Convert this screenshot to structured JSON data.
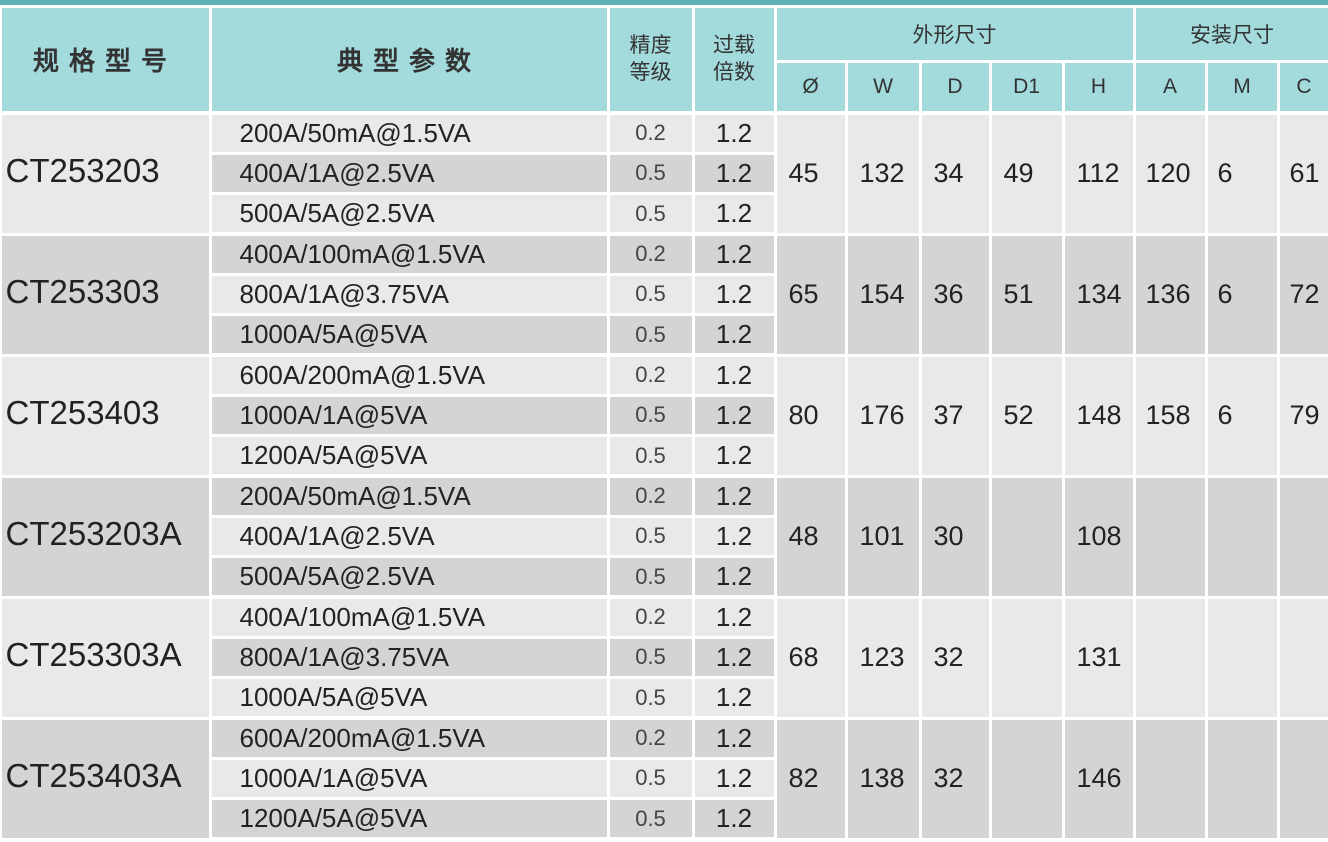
{
  "header": {
    "model": "规格型号",
    "params": "典型参数",
    "accuracy": "精度等级",
    "overload": "过载倍数",
    "outline": "外形尺寸",
    "mounting": "安装尺寸",
    "outline_cols": [
      "Ø",
      "W",
      "D",
      "D1",
      "H"
    ],
    "mounting_cols": [
      "A",
      "M",
      "C"
    ]
  },
  "rows": [
    {
      "model": "CT253203",
      "specs": [
        {
          "spec": "200A/50mA@1.5VA",
          "accuracy": 0.2,
          "overload": 1.2
        },
        {
          "spec": "400A/1A@2.5VA",
          "accuracy": 0.5,
          "overload": 1.2
        },
        {
          "spec": "500A/5A@2.5VA",
          "accuracy": 0.5,
          "overload": 1.2
        }
      ],
      "outline": [
        45,
        132,
        34,
        49,
        112
      ],
      "mounting": [
        120,
        6,
        61
      ]
    },
    {
      "model": "CT253303",
      "specs": [
        {
          "spec": "400A/100mA@1.5VA",
          "accuracy": 0.2,
          "overload": 1.2
        },
        {
          "spec": "800A/1A@3.75VA",
          "accuracy": 0.5,
          "overload": 1.2
        },
        {
          "spec": "1000A/5A@5VA",
          "accuracy": 0.5,
          "overload": 1.2
        }
      ],
      "outline": [
        65,
        154,
        36,
        51,
        134
      ],
      "mounting": [
        136,
        6,
        72
      ]
    },
    {
      "model": "CT253403",
      "specs": [
        {
          "spec": "600A/200mA@1.5VA",
          "accuracy": 0.2,
          "overload": 1.2
        },
        {
          "spec": "1000A/1A@5VA",
          "accuracy": 0.5,
          "overload": 1.2
        },
        {
          "spec": "1200A/5A@5VA",
          "accuracy": 0.5,
          "overload": 1.2
        }
      ],
      "outline": [
        80,
        176,
        37,
        52,
        148
      ],
      "mounting": [
        158,
        6,
        79
      ]
    },
    {
      "model": "CT253203A",
      "specs": [
        {
          "spec": "200A/50mA@1.5VA",
          "accuracy": 0.2,
          "overload": 1.2
        },
        {
          "spec": "400A/1A@2.5VA",
          "accuracy": 0.5,
          "overload": 1.2
        },
        {
          "spec": "500A/5A@2.5VA",
          "accuracy": 0.5,
          "overload": 1.2
        }
      ],
      "outline": [
        48,
        101,
        30,
        null,
        108
      ]
    },
    {
      "model": "CT253303A",
      "specs": [
        {
          "spec": "400A/100mA@1.5VA",
          "accuracy": 0.2,
          "overload": 1.2
        },
        {
          "spec": "800A/1A@3.75VA",
          "accuracy": 0.5,
          "overload": 1.2
        },
        {
          "spec": "1000A/5A@5VA",
          "accuracy": 0.5,
          "overload": 1.2
        }
      ],
      "outline": [
        68,
        123,
        32,
        null,
        131
      ]
    },
    {
      "model": "CT253403A",
      "specs": [
        {
          "spec": "600A/200mA@1.5VA",
          "accuracy": 0.2,
          "overload": 1.2
        },
        {
          "spec": "1000A/1A@5VA",
          "accuracy": 0.5,
          "overload": 1.2
        },
        {
          "spec": "1200A/5A@5VA",
          "accuracy": 0.5,
          "overload": 1.2
        }
      ],
      "outline": [
        82,
        138,
        32,
        null,
        146
      ]
    }
  ]
}
